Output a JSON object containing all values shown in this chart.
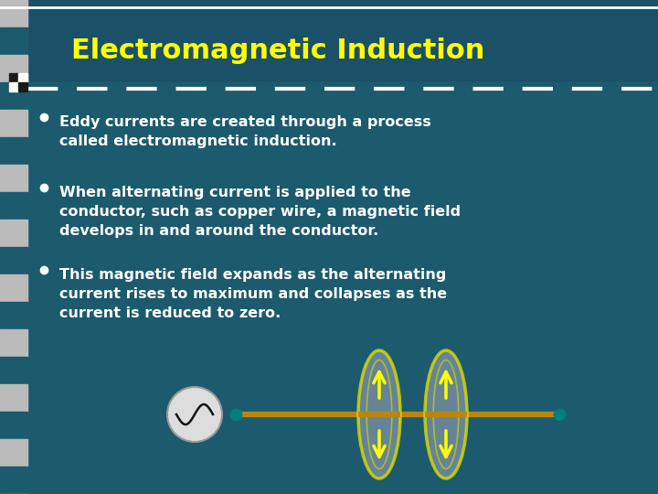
{
  "title": "Electromagnetic Induction",
  "title_color": "#FFFF00",
  "title_fontsize": 22,
  "bg_color": "#1C5A6E",
  "header_bg": "#1A5068",
  "dashed_line_color": "#FFFFFF",
  "bullet_color": "#FFFFFF",
  "bullet_points": [
    "Eddy currents are created through a process\ncalled electromagnetic induction.",
    "When alternating current is applied to the\nconductor, such as copper wire, a magnetic field\ndevelops in and around the conductor.",
    "This magnetic field expands as the alternating\ncurrent rises to maximum and collapses as the\ncurrent is reduced to zero."
  ],
  "text_color": "#FFFFFF",
  "text_fontsize": 11.5,
  "strip_light": "#BBBBBB",
  "strip_dark": "#1C5A6E",
  "wire_color": "#B8860B",
  "ellipse_fill": "#7A8FA0",
  "ellipse_outline": "#DDDD00",
  "arrow_color": "#FFFF00",
  "dot_color": "#008080",
  "ac_circle_fill": "#DDDDDD",
  "ac_circle_outline": "#999999"
}
